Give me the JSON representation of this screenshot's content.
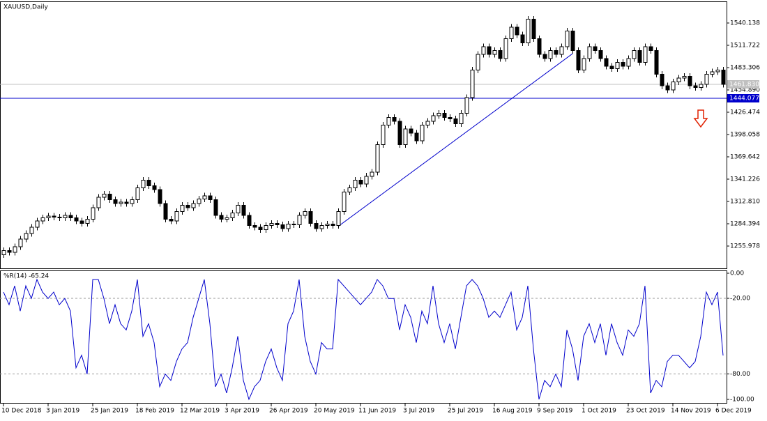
{
  "chart_data": [
    {
      "type": "candlestick",
      "title": "XAUUSD,Daily",
      "categories": [
        "10 Dec 2018",
        null,
        null,
        null,
        null,
        null,
        null,
        null,
        "3 Jan 2019",
        null,
        null,
        null,
        null,
        null,
        null,
        null,
        "25 Jan 2019",
        null,
        null,
        null,
        null,
        null,
        null,
        null,
        "18 Feb 2019",
        null,
        null,
        null,
        null,
        null,
        null,
        null,
        "12 Mar 2019",
        null,
        null,
        null,
        null,
        null,
        null,
        null,
        "3 Apr 2019",
        null,
        null,
        null,
        null,
        null,
        null,
        null,
        "26 Apr 2019",
        null,
        null,
        null,
        null,
        null,
        null,
        null,
        "20 May 2019",
        null,
        null,
        null,
        null,
        null,
        null,
        null,
        "11 Jun 2019",
        null,
        null,
        null,
        null,
        null,
        null,
        null,
        "3 Jul 2019",
        null,
        null,
        null,
        null,
        null,
        null,
        null,
        "25 Jul 2019",
        null,
        null,
        null,
        null,
        null,
        null,
        null,
        "16 Aug 2019",
        null,
        null,
        null,
        null,
        null,
        null,
        null,
        "9 Sep 2019",
        null,
        null,
        null,
        null,
        null,
        null,
        null,
        "1 Oct 2019",
        null,
        null,
        null,
        null,
        null,
        null,
        null,
        "23 Oct 2019",
        null,
        null,
        null,
        null,
        null,
        null,
        null,
        "14 Nov 2019",
        null,
        null,
        null,
        null,
        null,
        null,
        null,
        "6 Dec 2019",
        null
      ],
      "open": [
        1245,
        1250,
        1248,
        1255,
        1265,
        1272,
        1280,
        1288,
        1292,
        1294,
        1293,
        1292,
        1295,
        1292,
        1288,
        1285,
        1290,
        1305,
        1318,
        1322,
        1315,
        1310,
        1312,
        1310,
        1315,
        1330,
        1340,
        1333,
        1328,
        1310,
        1290,
        1288,
        1300,
        1308,
        1305,
        1310,
        1316,
        1320,
        1315,
        1295,
        1290,
        1292,
        1298,
        1308,
        1295,
        1282,
        1280,
        1277,
        1282,
        1285,
        1283,
        1278,
        1284,
        1283,
        1295,
        1300,
        1285,
        1278,
        1282,
        1284,
        1282,
        1300,
        1325,
        1330,
        1340,
        1335,
        1345,
        1350,
        1385,
        1410,
        1420,
        1415,
        1385,
        1405,
        1400,
        1390,
        1410,
        1415,
        1422,
        1425,
        1420,
        1418,
        1412,
        1425,
        1445,
        1480,
        1500,
        1510,
        1500,
        1505,
        1495,
        1520,
        1535,
        1525,
        1515,
        1545,
        1520,
        1500,
        1495,
        1505,
        1500,
        1510,
        1530,
        1505,
        1480,
        1495,
        1510,
        1505,
        1495,
        1485,
        1482,
        1490,
        1485,
        1495,
        1505,
        1490,
        1510,
        1505,
        1475,
        1460,
        1455,
        1465,
        1470,
        1472,
        1460,
        1458,
        1462,
        1475,
        1478,
        1480
      ],
      "high": [
        1254,
        1254,
        1259,
        1269,
        1276,
        1284,
        1292,
        1296,
        1298,
        1298,
        1297,
        1299,
        1299,
        1296,
        1292,
        1294,
        1309,
        1322,
        1326,
        1326,
        1319,
        1316,
        1316,
        1319,
        1334,
        1344,
        1344,
        1337,
        1332,
        1314,
        1294,
        1304,
        1312,
        1312,
        1314,
        1320,
        1324,
        1324,
        1319,
        1299,
        1296,
        1302,
        1312,
        1312,
        1299,
        1286,
        1284,
        1286,
        1289,
        1289,
        1287,
        1288,
        1288,
        1299,
        1304,
        1304,
        1289,
        1286,
        1288,
        1288,
        1304,
        1329,
        1334,
        1344,
        1344,
        1349,
        1354,
        1389,
        1414,
        1424,
        1424,
        1419,
        1409,
        1409,
        1404,
        1414,
        1419,
        1426,
        1429,
        1429,
        1424,
        1422,
        1429,
        1449,
        1484,
        1504,
        1514,
        1514,
        1509,
        1509,
        1524,
        1539,
        1539,
        1529,
        1549,
        1549,
        1524,
        1504,
        1509,
        1509,
        1514,
        1534,
        1534,
        1509,
        1499,
        1514,
        1514,
        1509,
        1499,
        1489,
        1494,
        1494,
        1499,
        1509,
        1509,
        1514,
        1514,
        1509,
        1479,
        1464,
        1469,
        1474,
        1476,
        1476,
        1464,
        1466,
        1479,
        1482,
        1484,
        1484
      ],
      "low": [
        1241,
        1244,
        1244,
        1251,
        1261,
        1268,
        1276,
        1284,
        1288,
        1289,
        1288,
        1288,
        1288,
        1284,
        1281,
        1281,
        1286,
        1301,
        1314,
        1311,
        1306,
        1306,
        1306,
        1306,
        1311,
        1326,
        1329,
        1324,
        1306,
        1286,
        1284,
        1284,
        1296,
        1301,
        1301,
        1306,
        1312,
        1311,
        1291,
        1286,
        1286,
        1288,
        1294,
        1291,
        1278,
        1276,
        1273,
        1273,
        1278,
        1279,
        1274,
        1274,
        1279,
        1279,
        1291,
        1281,
        1274,
        1274,
        1278,
        1278,
        1278,
        1296,
        1321,
        1326,
        1331,
        1331,
        1341,
        1346,
        1381,
        1406,
        1411,
        1381,
        1381,
        1396,
        1386,
        1386,
        1406,
        1411,
        1418,
        1416,
        1414,
        1408,
        1408,
        1421,
        1441,
        1476,
        1496,
        1496,
        1496,
        1491,
        1491,
        1516,
        1521,
        1511,
        1511,
        1516,
        1496,
        1491,
        1491,
        1496,
        1496,
        1506,
        1501,
        1476,
        1476,
        1491,
        1501,
        1491,
        1481,
        1478,
        1478,
        1481,
        1481,
        1491,
        1486,
        1486,
        1501,
        1471,
        1456,
        1451,
        1451,
        1461,
        1466,
        1456,
        1454,
        1454,
        1458,
        1471,
        1474,
        1458
      ],
      "close": [
        1250,
        1248,
        1255,
        1265,
        1272,
        1280,
        1288,
        1292,
        1294,
        1293,
        1292,
        1295,
        1292,
        1288,
        1285,
        1290,
        1305,
        1318,
        1322,
        1315,
        1310,
        1312,
        1310,
        1315,
        1330,
        1340,
        1333,
        1328,
        1310,
        1290,
        1288,
        1300,
        1308,
        1305,
        1310,
        1316,
        1320,
        1315,
        1295,
        1290,
        1292,
        1298,
        1308,
        1295,
        1282,
        1280,
        1277,
        1282,
        1285,
        1283,
        1278,
        1284,
        1283,
        1295,
        1300,
        1285,
        1278,
        1282,
        1284,
        1282,
        1300,
        1325,
        1330,
        1340,
        1335,
        1345,
        1350,
        1385,
        1410,
        1420,
        1415,
        1385,
        1405,
        1400,
        1390,
        1410,
        1415,
        1422,
        1425,
        1420,
        1418,
        1412,
        1425,
        1445,
        1480,
        1500,
        1510,
        1500,
        1505,
        1495,
        1520,
        1535,
        1525,
        1515,
        1545,
        1520,
        1500,
        1495,
        1505,
        1500,
        1510,
        1530,
        1505,
        1480,
        1495,
        1510,
        1505,
        1495,
        1485,
        1482,
        1490,
        1485,
        1495,
        1505,
        1490,
        1510,
        1505,
        1475,
        1460,
        1455,
        1465,
        1470,
        1472,
        1460,
        1458,
        1462,
        1475,
        1478,
        1480,
        1462
      ],
      "ylim": [
        1227.56,
        1567.67
      ],
      "yticks": [
        1255.978,
        1284.394,
        {
          "value": 1312.81,
          "label": "1312.810"
        },
        1341.226,
        1369.642,
        1398.058,
        1426.474,
        {
          "value": 1454.89,
          "label": "1454.890"
        },
        1483.306,
        1511.722,
        1540.138
      ],
      "last_price": {
        "value": 1461.83,
        "label": "1461.830"
      },
      "hline": {
        "value": 1444.077,
        "color": "#0000cc"
      },
      "trend_line": {
        "x": [
          60,
          102
        ],
        "values": [
          1281,
          1501
        ],
        "color": "#0000cc"
      }
    },
    {
      "type": "line",
      "title": "%R(14) -65.24",
      "color": "#0000cc",
      "values": [
        -15,
        -25,
        -10,
        -30,
        -10,
        -20,
        -5,
        -15,
        -20,
        -15,
        -25,
        -20,
        -30,
        -75,
        -65,
        -80,
        -5,
        -5,
        -20,
        -40,
        -25,
        -40,
        -45,
        -30,
        -5,
        -50,
        -40,
        -55,
        -90,
        -80,
        -85,
        -70,
        -60,
        -55,
        -35,
        -20,
        -5,
        -40,
        -90,
        -80,
        -95,
        -75,
        -50,
        -85,
        -100,
        -90,
        -85,
        -70,
        -60,
        -75,
        -85,
        -40,
        -30,
        -5,
        -50,
        -70,
        -80,
        -55,
        -60,
        -60,
        -5,
        -10,
        -15,
        -20,
        -25,
        -20,
        -15,
        -5,
        -10,
        -20,
        -20,
        -45,
        -25,
        -35,
        -55,
        -30,
        -40,
        -10,
        -40,
        -55,
        -40,
        -60,
        -35,
        -10,
        -5,
        -10,
        -20,
        -35,
        -30,
        -35,
        -25,
        -15,
        -45,
        -35,
        -10,
        -60,
        -100,
        -85,
        -90,
        -80,
        -90,
        -45,
        -60,
        -85,
        -50,
        -40,
        -55,
        -40,
        -65,
        -40,
        -55,
        -65,
        -45,
        -50,
        -40,
        -10,
        -95,
        -85,
        -90,
        -70,
        -65,
        -65,
        -70,
        -75,
        -70,
        -50,
        -15,
        -25,
        -15,
        -65.24
      ],
      "ylim": [
        -102.8,
        2.2
      ],
      "yticks": [
        {
          "value": 0,
          "label": "0.00"
        },
        {
          "value": -20,
          "label": "-20.00"
        },
        {
          "value": -80,
          "label": "-80.00"
        },
        {
          "value": -100,
          "label": "-100.00"
        }
      ],
      "level_lines": [
        -20,
        -80
      ]
    }
  ]
}
